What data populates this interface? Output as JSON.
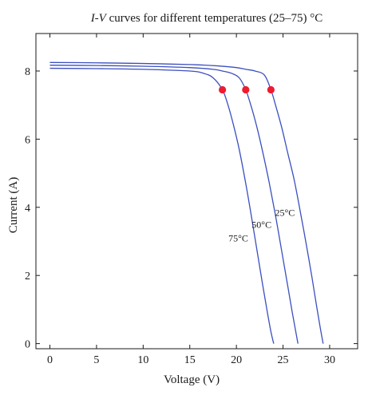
{
  "chart_data": {
    "type": "line",
    "title_italic": "I-V",
    "title_rest": " curves for different temperatures (25–75) °C",
    "xlabel": "Voltage (V)",
    "ylabel": "Current (A)",
    "xlim": [
      -1.5,
      33
    ],
    "ylim": [
      -0.15,
      9.1
    ],
    "xticks": [
      0,
      5,
      10,
      15,
      20,
      25,
      30
    ],
    "yticks": [
      0,
      2,
      4,
      6,
      8
    ],
    "grid": false,
    "legend": "none",
    "colors": {
      "curve": "#3b4fc0",
      "mpp": "#ee1c2e",
      "axis": "#1a1a1a"
    },
    "series": [
      {
        "label": "25°C",
        "label_at": [
          25.2,
          3.75
        ],
        "x": [
          0,
          5,
          10,
          15,
          18,
          20,
          21,
          22,
          23,
          23.7,
          24.3,
          24.9,
          25.5,
          26.2,
          26.9,
          27.5,
          28.1,
          28.6,
          29.0,
          29.3
        ],
        "y": [
          8.25,
          8.24,
          8.22,
          8.19,
          8.15,
          8.1,
          8.05,
          8.0,
          7.88,
          7.45,
          6.9,
          6.3,
          5.6,
          4.8,
          3.8,
          2.9,
          1.95,
          1.1,
          0.45,
          0.0
        ]
      },
      {
        "label": "50°C",
        "label_at": [
          22.7,
          3.4
        ],
        "x": [
          0,
          5,
          10,
          15,
          17.5,
          18.5,
          19.5,
          20.3,
          21.0,
          21.6,
          22.2,
          22.8,
          23.5,
          24.2,
          24.9,
          25.5,
          26.0,
          26.4,
          26.6
        ],
        "y": [
          8.17,
          8.16,
          8.14,
          8.1,
          8.05,
          8.0,
          7.93,
          7.8,
          7.45,
          6.95,
          6.35,
          5.65,
          4.75,
          3.75,
          2.65,
          1.7,
          0.9,
          0.3,
          0.0
        ]
      },
      {
        "label": "75°C",
        "label_at": [
          20.2,
          3.0
        ],
        "x": [
          0,
          5,
          10,
          15,
          16.5,
          17.5,
          18.5,
          19.1,
          19.7,
          20.3,
          21.0,
          21.6,
          22.2,
          22.8,
          23.3,
          23.7,
          24.0
        ],
        "y": [
          8.08,
          8.07,
          8.05,
          8.0,
          7.93,
          7.8,
          7.45,
          7.0,
          6.4,
          5.7,
          4.7,
          3.75,
          2.75,
          1.75,
          0.95,
          0.35,
          0.0
        ]
      }
    ],
    "mpp_points": [
      {
        "x": 23.7,
        "y": 7.45
      },
      {
        "x": 21.0,
        "y": 7.45
      },
      {
        "x": 18.5,
        "y": 7.45
      }
    ]
  }
}
